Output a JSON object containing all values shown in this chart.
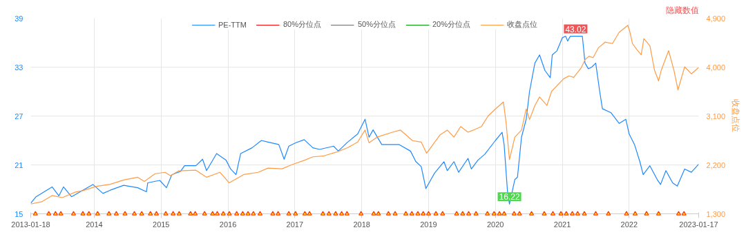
{
  "chart_data": {
    "type": "line",
    "xlim": [
      2013.05,
      2023.04
    ],
    "xticks": [
      {
        "value": 2013.05,
        "label": "2013-01-18"
      },
      2014,
      2015,
      2016,
      2017,
      2018,
      2019,
      2020,
      2021,
      2022,
      {
        "value": 2023.04,
        "label": "2023-01-17"
      }
    ],
    "ylim": [
      15,
      39
    ],
    "yticks": [
      15,
      21,
      27,
      33,
      39
    ],
    "y2lim": [
      1300,
      4900
    ],
    "y2ticks": [
      {
        "value": 1300,
        "label": "1,300"
      },
      {
        "value": 2200,
        "label": "2,200"
      },
      {
        "value": 3100,
        "label": "3,100"
      },
      {
        "value": 4000,
        "label": "4,000"
      },
      {
        "value": 4900,
        "label": "4,900"
      }
    ],
    "y2label": "收盘点位",
    "grid": true,
    "legend": "top",
    "annotations": [
      {
        "text": "43.02",
        "x": 2021.2,
        "y": 36.8
      },
      {
        "text": "16.22",
        "x": 2020.21,
        "y": 16.2
      },
      "隐藏数值"
    ],
    "series": [
      {
        "name": "PE-TTM",
        "color": "#1e88ff",
        "x": [
          2013.05,
          2013.13,
          2013.21,
          2013.37,
          2013.47,
          2013.54,
          2013.66,
          2013.83,
          2013.98,
          2014.13,
          2014.24,
          2014.44,
          2014.65,
          2014.78,
          2014.8,
          2014.98,
          2015.08,
          2015.16,
          2015.29,
          2015.35,
          2015.52,
          2015.62,
          2015.68,
          2015.83,
          2015.88,
          2015.97,
          2016.04,
          2016.12,
          2016.19,
          2016.36,
          2016.5,
          2016.6,
          2016.76,
          2016.84,
          2016.91,
          2017.01,
          2017.14,
          2017.27,
          2017.37,
          2017.58,
          2017.65,
          2017.79,
          2017.94,
          2018.05,
          2018.11,
          2018.17,
          2018.3,
          2018.56,
          2018.73,
          2018.81,
          2018.89,
          2018.96,
          2019.09,
          2019.23,
          2019.28,
          2019.38,
          2019.45,
          2019.59,
          2019.64,
          2019.74,
          2019.84,
          2020.0,
          2020.1,
          2020.13,
          2020.18,
          2020.21,
          2020.29,
          2020.33,
          2020.39,
          2020.46,
          2020.51,
          2020.59,
          2020.66,
          2020.74,
          2020.82,
          2020.85,
          2020.92,
          2021.0,
          2021.05,
          2021.08,
          2021.12,
          2021.3,
          2021.34,
          2021.39,
          2021.44,
          2021.5,
          2021.56,
          2021.6,
          2021.73,
          2021.85,
          2021.95,
          2022.0,
          2022.08,
          2022.16,
          2022.21,
          2022.31,
          2022.42,
          2022.47,
          2022.55,
          2022.65,
          2022.72,
          2022.83,
          2022.93,
          2023.04
        ],
        "values": [
          16.3,
          17.1,
          17.5,
          18.3,
          17.2,
          18.3,
          17.1,
          17.9,
          18.6,
          17.5,
          17.9,
          18.5,
          18.2,
          17.7,
          18.8,
          19.1,
          18.2,
          19.8,
          20.2,
          20.9,
          20.9,
          21.7,
          20.3,
          22.4,
          22.1,
          21.6,
          20.5,
          19.8,
          22.4,
          23.1,
          24.0,
          23.8,
          23.5,
          21.7,
          23.3,
          23.7,
          24.1,
          23.1,
          22.9,
          23.3,
          22.7,
          23.8,
          24.8,
          26.6,
          24.4,
          25.3,
          23.5,
          23.5,
          22.7,
          21.4,
          20.8,
          18.1,
          20.0,
          21.4,
          20.3,
          21.4,
          20.1,
          21.8,
          20.5,
          21.6,
          22.3,
          24.0,
          25.0,
          23.5,
          17.8,
          16.2,
          19.2,
          19.5,
          24.4,
          26.6,
          30.0,
          33.5,
          34.5,
          32.6,
          31.7,
          34.5,
          35.0,
          36.6,
          36.8,
          36.2,
          36.8,
          36.8,
          33.5,
          32.8,
          33.0,
          33.5,
          30.0,
          27.9,
          27.4,
          26.1,
          26.6,
          24.8,
          23.5,
          21.4,
          19.8,
          20.9,
          19.2,
          18.6,
          20.3,
          18.8,
          18.4,
          20.5,
          20.1,
          21.1
        ]
      },
      {
        "name": "80%分位点",
        "color": "#ff0000"
      },
      {
        "name": "50%分位点",
        "color": "#666666"
      },
      {
        "name": "20%分位点",
        "color": "#009900"
      },
      {
        "name": "收盘点位",
        "color": "#ff9b45",
        "axis": "y2",
        "x": [
          2013.05,
          2013.21,
          2013.37,
          2013.52,
          2013.72,
          2013.83,
          2014.03,
          2014.24,
          2014.44,
          2014.65,
          2014.75,
          2014.91,
          2015.06,
          2015.14,
          2015.26,
          2015.52,
          2015.68,
          2015.88,
          2016.02,
          2016.09,
          2016.24,
          2016.45,
          2016.6,
          2016.81,
          2016.96,
          2017.14,
          2017.27,
          2017.42,
          2017.63,
          2017.79,
          2017.94,
          2018.05,
          2018.11,
          2018.23,
          2018.46,
          2018.58,
          2018.76,
          2018.89,
          2018.97,
          2019.17,
          2019.28,
          2019.38,
          2019.48,
          2019.59,
          2019.67,
          2019.79,
          2019.89,
          2020.0,
          2020.12,
          2020.16,
          2020.21,
          2020.29,
          2020.39,
          2020.46,
          2020.51,
          2020.59,
          2020.66,
          2020.77,
          2020.84,
          2020.97,
          2021.02,
          2021.1,
          2021.17,
          2021.28,
          2021.34,
          2021.4,
          2021.46,
          2021.54,
          2021.64,
          2021.75,
          2021.85,
          2021.93,
          2021.98,
          2022.01,
          2022.05,
          2022.11,
          2022.18,
          2022.22,
          2022.31,
          2022.38,
          2022.44,
          2022.48,
          2022.59,
          2022.67,
          2022.73,
          2022.83,
          2022.93,
          2023.04
        ],
        "values": [
          1481,
          1520,
          1637,
          1598,
          1701,
          1727,
          1805,
          1844,
          1922,
          1973,
          1896,
          2038,
          2064,
          1999,
          2090,
          2103,
          1973,
          2064,
          1870,
          1922,
          2025,
          2064,
          2142,
          2129,
          2206,
          2284,
          2349,
          2362,
          2440,
          2517,
          2621,
          2841,
          2608,
          2711,
          2802,
          2841,
          2647,
          2621,
          2414,
          2750,
          2841,
          2711,
          2906,
          2802,
          2841,
          2906,
          3100,
          3230,
          3359,
          2970,
          2297,
          2711,
          2841,
          3230,
          3035,
          3294,
          3450,
          3294,
          3553,
          3722,
          3786,
          3838,
          3812,
          3981,
          4136,
          4201,
          4175,
          4356,
          4460,
          4434,
          4641,
          4719,
          4770,
          4654,
          4434,
          4330,
          4227,
          4524,
          4395,
          3942,
          3747,
          3942,
          4304,
          3942,
          3579,
          4006,
          3877,
          3994
        ]
      },
      {
        "type": "scatter",
        "marker": "triangle",
        "color": "#ff3300",
        "x": [
          2013.12,
          2013.32,
          2013.42,
          2013.5,
          2013.69,
          2013.83,
          2013.92,
          2014.05,
          2014.22,
          2014.33,
          2014.46,
          2014.6,
          2014.71,
          2014.84,
          2014.93,
          2015.07,
          2015.18,
          2015.27,
          2015.44,
          2015.51,
          2015.65,
          2015.77,
          2015.84,
          2015.93,
          2016.02,
          2016.13,
          2016.22,
          2016.3,
          2016.38,
          2016.48,
          2016.67,
          2016.75,
          2016.91,
          2017.01,
          2017.15,
          2017.22,
          2017.42,
          2017.51,
          2017.61,
          2017.7,
          2017.78,
          2017.99,
          2018.18,
          2018.25,
          2018.4,
          2018.5,
          2018.66,
          2018.75,
          2018.84,
          2018.92,
          2019.0,
          2019.11,
          2019.21,
          2019.42,
          2019.51,
          2019.6,
          2019.71,
          2019.88,
          2019.98,
          2020.06,
          2020.13,
          2020.28,
          2020.36,
          2020.54,
          2020.73,
          2020.86,
          2020.98,
          2021.06,
          2021.15,
          2021.23,
          2021.33,
          2021.5,
          2021.69,
          2021.96,
          2022.09,
          2022.26,
          2022.44,
          2022.74,
          2022.82
        ],
        "values": [
          15,
          15,
          15,
          15,
          15,
          15,
          15,
          15,
          15,
          15,
          15,
          15,
          15,
          15,
          15,
          15,
          15,
          15,
          15,
          15,
          15,
          15,
          15,
          15,
          15,
          15,
          15,
          15,
          15,
          15,
          15,
          15,
          15,
          15,
          15,
          15,
          15,
          15,
          15,
          15,
          15,
          15,
          15,
          15,
          15,
          15,
          15,
          15,
          15,
          15,
          15,
          15,
          15,
          15,
          15,
          15,
          15,
          15,
          15,
          15,
          15,
          15,
          15,
          15,
          15,
          15,
          15,
          15,
          15,
          15,
          15,
          15,
          15,
          15,
          15,
          15,
          15,
          15,
          15
        ]
      }
    ]
  }
}
